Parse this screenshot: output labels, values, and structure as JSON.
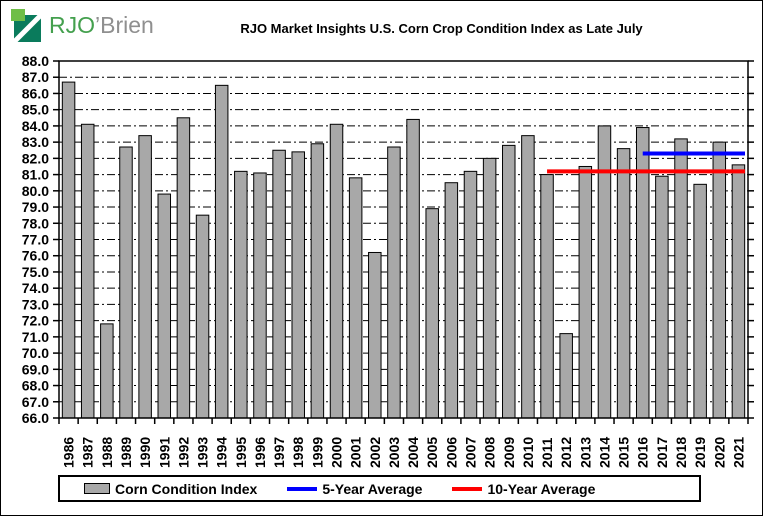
{
  "logo": {
    "rjo": "RJO",
    "brien": "’Brien",
    "icon_light_green": "#6fbe47",
    "icon_dark_green": "#0a7b5c"
  },
  "header": {
    "title": "RJO Market Insights U.S. Corn Crop Condition Index as Late July"
  },
  "chart_data": {
    "type": "bar",
    "title": "RJO Market Insights U.S. Corn Crop Condition Index as Late July",
    "categories": [
      "1986",
      "1987",
      "1988",
      "1989",
      "1990",
      "1991",
      "1992",
      "1993",
      "1994",
      "1995",
      "1996",
      "1997",
      "1998",
      "1999",
      "2000",
      "2001",
      "2002",
      "2003",
      "2004",
      "2005",
      "2006",
      "2007",
      "2008",
      "2009",
      "2010",
      "2011",
      "2012",
      "2013",
      "2014",
      "2015",
      "2016",
      "2017",
      "2018",
      "2019",
      "2020",
      "2021"
    ],
    "series": [
      {
        "name": "Corn Condition Index",
        "type": "bar",
        "color": "#a8a8a8",
        "values": [
          86.7,
          84.1,
          71.8,
          82.7,
          83.4,
          79.8,
          84.5,
          78.5,
          86.5,
          81.2,
          81.1,
          82.5,
          82.4,
          82.9,
          84.1,
          80.8,
          76.2,
          82.7,
          84.4,
          78.9,
          80.5,
          81.2,
          82.0,
          82.8,
          83.4,
          81.0,
          71.2,
          81.5,
          84.0,
          82.6,
          83.9,
          80.9,
          83.2,
          80.4,
          83.0,
          81.6
        ]
      },
      {
        "name": "5-Year Average",
        "type": "hline",
        "color": "#0000ff",
        "value": 82.3,
        "span": [
          "2016",
          "2021"
        ]
      },
      {
        "name": "10-Year Average",
        "type": "hline",
        "color": "#ff0000",
        "value": 81.2,
        "span": [
          "2011",
          "2021"
        ]
      }
    ],
    "xlabel": "",
    "ylabel": "",
    "ylim": [
      66.0,
      88.0
    ],
    "ytick_step": 1.0,
    "ytick_decimals": 1,
    "grid": "horizontal dashed",
    "legend_position": "bottom"
  },
  "legend": {
    "items": [
      {
        "label": "Corn Condition Index",
        "swatch": "bar",
        "color": "#a8a8a8"
      },
      {
        "label": "5-Year Average",
        "swatch": "line",
        "color": "#0000ff"
      },
      {
        "label": "10-Year Average",
        "swatch": "line",
        "color": "#ff0000"
      }
    ]
  }
}
